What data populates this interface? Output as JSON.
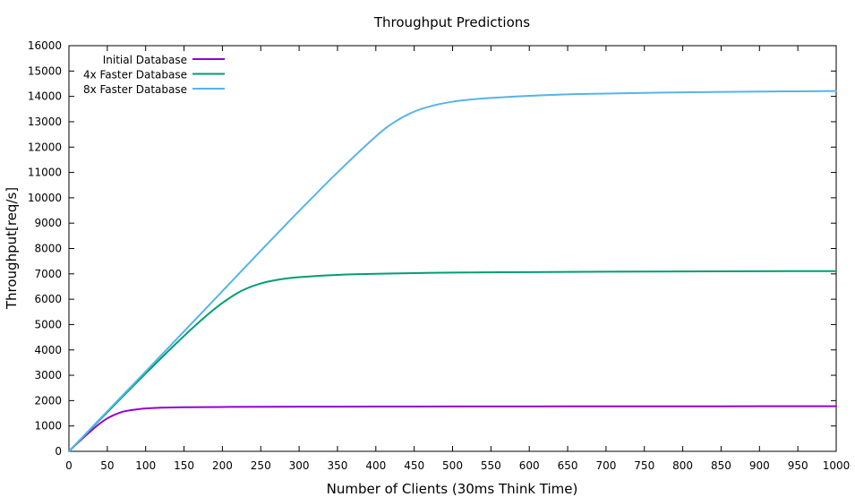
{
  "chart_data": {
    "type": "line",
    "title": "Throughput Predictions",
    "xlabel": "Number of Clients (30ms Think Time)",
    "ylabel": "Throughput[req/s]",
    "xlim": [
      0,
      1000
    ],
    "ylim": [
      0,
      16000
    ],
    "x_ticks": [
      0,
      50,
      100,
      150,
      200,
      250,
      300,
      350,
      400,
      450,
      500,
      550,
      600,
      650,
      700,
      750,
      800,
      850,
      900,
      950,
      1000
    ],
    "y_ticks": [
      0,
      1000,
      2000,
      3000,
      4000,
      5000,
      6000,
      7000,
      8000,
      9000,
      10000,
      11000,
      12000,
      13000,
      14000,
      15000,
      16000
    ],
    "grid": false,
    "legend_position": "top-left",
    "series": [
      {
        "name": "Initial Database",
        "color": "#9400d3",
        "x": [
          0,
          10,
          20,
          30,
          40,
          50,
          60,
          70,
          80,
          90,
          100,
          120,
          150,
          200,
          300,
          400,
          500,
          600,
          700,
          800,
          900,
          1000
        ],
        "y": [
          0,
          290,
          570,
          840,
          1090,
          1300,
          1450,
          1560,
          1620,
          1660,
          1690,
          1720,
          1740,
          1750,
          1760,
          1765,
          1770,
          1772,
          1774,
          1776,
          1778,
          1780
        ]
      },
      {
        "name": "4x Faster Database",
        "color": "#009e73",
        "x": [
          0,
          25,
          50,
          75,
          100,
          125,
          150,
          175,
          200,
          225,
          250,
          275,
          300,
          350,
          400,
          450,
          500,
          600,
          700,
          800,
          900,
          1000
        ],
        "y": [
          0,
          770,
          1540,
          2310,
          3070,
          3820,
          4550,
          5240,
          5850,
          6330,
          6620,
          6780,
          6870,
          6960,
          7000,
          7030,
          7050,
          7070,
          7085,
          7095,
          7105,
          7110
        ]
      },
      {
        "name": "8x Faster Database",
        "color": "#56b4e9",
        "x": [
          0,
          50,
          100,
          150,
          200,
          250,
          300,
          350,
          400,
          425,
          450,
          475,
          500,
          525,
          550,
          600,
          650,
          700,
          800,
          900,
          1000
        ],
        "y": [
          0,
          1580,
          3150,
          4730,
          6320,
          7910,
          9480,
          11000,
          12420,
          13000,
          13400,
          13640,
          13790,
          13880,
          13940,
          14020,
          14080,
          14110,
          14160,
          14190,
          14210
        ]
      }
    ]
  }
}
